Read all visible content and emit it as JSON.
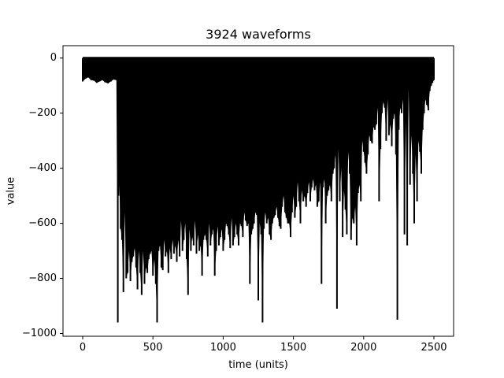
{
  "chart_data": {
    "type": "line",
    "title": "3924 waveforms",
    "xlabel": "time (units)",
    "ylabel": "value",
    "xlim": [
      -140,
      2640
    ],
    "ylim": [
      -1010,
      45
    ],
    "x_ticks": [
      0,
      500,
      1000,
      1500,
      2000,
      2500
    ],
    "x_tick_labels": [
      "0",
      "500",
      "1000",
      "1500",
      "2000",
      "2500"
    ],
    "y_ticks": [
      0,
      -200,
      -400,
      -600,
      -800,
      -1000
    ],
    "y_tick_labels": [
      "0",
      "−200",
      "−400",
      "−600",
      "−800",
      "−1000"
    ],
    "grid": false,
    "legend": "none",
    "series_color": "#000000",
    "series": [
      {
        "x": [
          0,
          20,
          40,
          60,
          80,
          100,
          120,
          140,
          160,
          180,
          200,
          220,
          240,
          250,
          255,
          260,
          270,
          280,
          290,
          300,
          310,
          320,
          330,
          340,
          350,
          360,
          370,
          380,
          390,
          400,
          410,
          420,
          430,
          440,
          450,
          460,
          470,
          480,
          490,
          500,
          510,
          520,
          530,
          540,
          550,
          560,
          570,
          580,
          590,
          600,
          610,
          620,
          630,
          640,
          650,
          660,
          670,
          680,
          690,
          700,
          710,
          720,
          730,
          740,
          750,
          760,
          770,
          780,
          790,
          800,
          810,
          820,
          830,
          840,
          850,
          860,
          870,
          880,
          890,
          900,
          910,
          920,
          930,
          940,
          950,
          960,
          970,
          980,
          990,
          1000,
          1010,
          1020,
          1030,
          1040,
          1050,
          1060,
          1070,
          1080,
          1090,
          1100,
          1110,
          1120,
          1130,
          1140,
          1150,
          1160,
          1170,
          1180,
          1190,
          1200,
          1210,
          1220,
          1230,
          1240,
          1250,
          1260,
          1270,
          1280,
          1290,
          1300,
          1310,
          1320,
          1330,
          1340,
          1350,
          1360,
          1370,
          1380,
          1390,
          1400,
          1410,
          1420,
          1430,
          1440,
          1450,
          1460,
          1470,
          1480,
          1490,
          1500,
          1510,
          1520,
          1530,
          1540,
          1550,
          1560,
          1570,
          1580,
          1590,
          1600,
          1610,
          1620,
          1630,
          1640,
          1650,
          1660,
          1670,
          1680,
          1690,
          1700,
          1710,
          1720,
          1730,
          1740,
          1750,
          1760,
          1770,
          1780,
          1790,
          1800,
          1810,
          1820,
          1830,
          1840,
          1850,
          1860,
          1870,
          1880,
          1890,
          1900,
          1910,
          1920,
          1930,
          1940,
          1950,
          1960,
          1970,
          1980,
          1990,
          2000,
          2010,
          2020,
          2030,
          2040,
          2050,
          2060,
          2070,
          2080,
          2090,
          2100,
          2110,
          2120,
          2130,
          2140,
          2150,
          2160,
          2170,
          2180,
          2190,
          2200,
          2210,
          2220,
          2230,
          2240,
          2250,
          2260,
          2270,
          2280,
          2290,
          2300,
          2310,
          2320,
          2330,
          2340,
          2350,
          2360,
          2370,
          2380,
          2390,
          2400,
          2410,
          2420,
          2430,
          2440,
          2450,
          2460,
          2470,
          2480,
          2490,
          2500
        ],
        "min": [
          -85,
          -75,
          -70,
          -80,
          -82,
          -90,
          -85,
          -80,
          -88,
          -92,
          -85,
          -78,
          -80,
          -960,
          -500,
          -450,
          -620,
          -660,
          -850,
          -560,
          -800,
          -780,
          -700,
          -810,
          -740,
          -720,
          -690,
          -760,
          -840,
          -700,
          -780,
          -860,
          -700,
          -820,
          -760,
          -780,
          -730,
          -710,
          -700,
          -790,
          -730,
          -820,
          -960,
          -700,
          -680,
          -760,
          -770,
          -660,
          -720,
          -700,
          -780,
          -690,
          -730,
          -660,
          -710,
          -680,
          -740,
          -660,
          -720,
          -590,
          -700,
          -660,
          -600,
          -730,
          -860,
          -620,
          -700,
          -650,
          -680,
          -590,
          -710,
          -640,
          -700,
          -680,
          -790,
          -660,
          -640,
          -660,
          -720,
          -600,
          -680,
          -640,
          -620,
          -790,
          -700,
          -610,
          -680,
          -650,
          -620,
          -700,
          -660,
          -600,
          -610,
          -640,
          -690,
          -580,
          -680,
          -650,
          -600,
          -640,
          -680,
          -600,
          -610,
          -650,
          -560,
          -590,
          -610,
          -600,
          -820,
          -640,
          -620,
          -600,
          -560,
          -570,
          -880,
          -600,
          -640,
          -960,
          -620,
          -560,
          -600,
          -580,
          -640,
          -660,
          -600,
          -580,
          -570,
          -540,
          -580,
          -610,
          -620,
          -540,
          -500,
          -560,
          -580,
          -600,
          -600,
          -650,
          -560,
          -500,
          -580,
          -540,
          -450,
          -520,
          -600,
          -480,
          -520,
          -500,
          -540,
          -490,
          -450,
          -520,
          -470,
          -440,
          -480,
          -460,
          -540,
          -520,
          -450,
          -820,
          -470,
          -440,
          -600,
          -500,
          -480,
          -460,
          -520,
          -420,
          -400,
          -350,
          -910,
          -330,
          -520,
          -400,
          -650,
          -480,
          -550,
          -640,
          -340,
          -420,
          -660,
          -580,
          -600,
          -540,
          -680,
          -490,
          -460,
          -520,
          -300,
          -340,
          -380,
          -420,
          -350,
          -280,
          -300,
          -310,
          -250,
          -260,
          -240,
          -180,
          -520,
          -330,
          -200,
          -160,
          -180,
          -300,
          -150,
          -280,
          -240,
          -320,
          -220,
          -200,
          -350,
          -950,
          -260,
          -180,
          -200,
          -150,
          -640,
          -230,
          -680,
          -110,
          -460,
          -280,
          -420,
          -600,
          -350,
          -520,
          -300,
          -340,
          -420,
          -260,
          -200,
          -150,
          -170,
          -190,
          -120,
          -100,
          -90,
          -80,
          -70
        ]
      }
    ]
  }
}
